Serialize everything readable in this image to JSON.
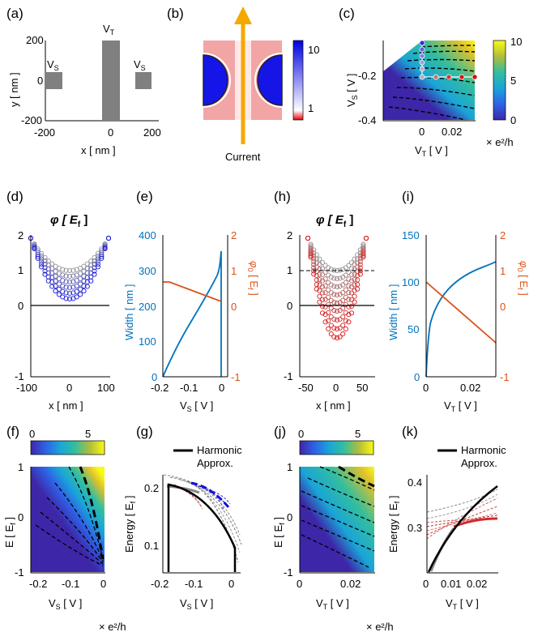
{
  "panels": {
    "a": {
      "label": "(a)",
      "xlabel": "x [ nm ]",
      "ylabel": "y [ nm ]",
      "xticks": [
        "-200",
        "0",
        "200"
      ],
      "yticks": [
        "-200",
        "0",
        "200"
      ],
      "gates": {
        "top": "V",
        "top_sub": "T",
        "left": "V",
        "left_sub": "S",
        "right": "V",
        "right_sub": "S"
      }
    },
    "b": {
      "label": "(b)",
      "colorbar_ticks": [
        "10",
        "1"
      ],
      "arrow_label": "Current"
    },
    "c": {
      "label": "(c)",
      "xlabel": "V",
      "xlabel_sub": "T",
      "xlabel_unit": " [ V ]",
      "ylabel": "V",
      "ylabel_sub": "S",
      "ylabel_unit": " [ V ]",
      "xticks": [
        "0",
        "0.02"
      ],
      "yticks": [
        "-0.2",
        "-0.4"
      ],
      "colorbar_ticks": [
        "10",
        "5",
        "0"
      ],
      "colorbar_unit": "× e²/h"
    },
    "d": {
      "label": "(d)",
      "title": "φ  [ E",
      "title_sub": "f",
      "title_end": " ]",
      "xlabel": "x [ nm ]",
      "xticks": [
        "-100",
        "0",
        "100"
      ],
      "yticks": [
        "2",
        "1",
        "0",
        "-1"
      ]
    },
    "e": {
      "label": "(e)",
      "xlabel": "V",
      "xlabel_sub": "S",
      "xlabel_unit": " [ V ]",
      "ylabel_left": "Width [ nm ]",
      "ylabel_right": "φ",
      "ylabel_right_sub": "0",
      "ylabel_right_unit": "  [ E",
      "ylabel_right_unit_sub": "f",
      "ylabel_right_end": " ]",
      "xticks": [
        "-0.2",
        "-0.1",
        "0"
      ],
      "yticks_left": [
        "400",
        "300",
        "200",
        "100",
        "0"
      ],
      "yticks_right": [
        "2",
        "1",
        "0",
        "-1"
      ]
    },
    "f": {
      "label": "(f)",
      "xlabel": "V",
      "xlabel_sub": "S",
      "xlabel_unit": " [ V ]",
      "ylabel": "E [ E",
      "ylabel_sub": "f",
      "ylabel_end": " ]",
      "xticks": [
        "-0.2",
        "-0.1",
        "0"
      ],
      "yticks": [
        "1",
        "0",
        "-1"
      ],
      "colorbar_ticks": [
        "0",
        "5"
      ],
      "colorbar_unit": "× e²/h"
    },
    "g": {
      "label": "(g)",
      "legend": "Harmonic",
      "legend2": "Approx.",
      "xlabel": "V",
      "xlabel_sub": "S",
      "xlabel_unit": " [ V ]",
      "ylabel": "Energy   [ E",
      "ylabel_sub": "f",
      "ylabel_end": " ]",
      "xticks": [
        "-0.2",
        "-0.1",
        "0"
      ],
      "yticks": [
        "0.2",
        "0.1"
      ]
    },
    "h": {
      "label": "(h)",
      "title": "φ  [ E",
      "title_sub": "f",
      "title_end": " ]",
      "xlabel": "x [ nm ]",
      "xticks": [
        "-50",
        "0",
        "50"
      ],
      "yticks": [
        "2",
        "1",
        "0",
        "-1"
      ]
    },
    "i": {
      "label": "(i)",
      "xlabel": "V",
      "xlabel_sub": "T",
      "xlabel_unit": " [ V ]",
      "ylabel_left": "Width [ nm ]",
      "ylabel_right": "φ",
      "ylabel_right_sub": "0",
      "ylabel_right_unit": "  [ E",
      "ylabel_right_unit_sub": "f",
      "ylabel_right_end": " ]",
      "xticks": [
        "0",
        "0.02"
      ],
      "yticks_left": [
        "150",
        "100",
        "50",
        "0"
      ],
      "yticks_right": [
        "2",
        "1",
        "0",
        "-1"
      ]
    },
    "j": {
      "label": "(j)",
      "xlabel": "V",
      "xlabel_sub": "T",
      "xlabel_unit": " [ V ]",
      "ylabel": "E [ E",
      "ylabel_sub": "f",
      "ylabel_end": " ]",
      "xticks": [
        "0",
        "0.02"
      ],
      "yticks": [
        "1",
        "0",
        "-1"
      ],
      "colorbar_ticks": [
        "0",
        "5"
      ],
      "colorbar_unit": "× e²/h"
    },
    "k": {
      "label": "(k)",
      "legend": "Harmonic",
      "legend2": "Approx.",
      "xlabel": "V",
      "xlabel_sub": "T",
      "xlabel_unit": " [ V ]",
      "ylabel": "Energy   [ E",
      "ylabel_sub": "f",
      "ylabel_end": " ]",
      "xticks": [
        "0",
        "0.01",
        "0.02"
      ],
      "yticks": [
        "0.4",
        "0.3"
      ]
    }
  },
  "colors": {
    "blue_line": "#0072BD",
    "orange_line": "#D95319",
    "gate_gray": "#808080",
    "arrow": "#F5A800",
    "red_mark": "#D62728"
  }
}
